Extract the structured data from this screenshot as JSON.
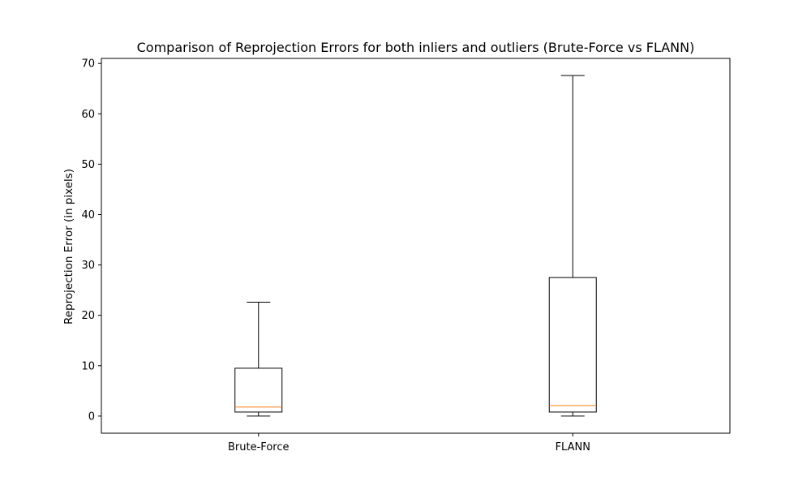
{
  "chart_data": {
    "type": "box",
    "title": "Comparison of Reprojection Errors for both inliers and outliers (Brute-Force vs FLANN)",
    "xlabel": "",
    "ylabel": "Reprojection Error (in pixels)",
    "ylim": [
      -3.4,
      71.0
    ],
    "yticks": [
      0,
      10,
      20,
      30,
      40,
      50,
      60,
      70
    ],
    "ytick_labels": [
      "0",
      "10",
      "20",
      "30",
      "40",
      "50",
      "60",
      "70"
    ],
    "grid": false,
    "categories": [
      "Brute-Force",
      "FLANN"
    ],
    "boxes": [
      {
        "label": "Brute-Force",
        "whisker_low": 0.0,
        "q1": 0.8,
        "median": 1.8,
        "q3": 9.5,
        "whisker_high": 22.6
      },
      {
        "label": "FLANN",
        "whisker_low": 0.0,
        "q1": 0.8,
        "median": 2.1,
        "q3": 27.5,
        "whisker_high": 67.6
      }
    ],
    "colors": {
      "box": "#000000",
      "whisker": "#000000",
      "median": "#ff7f0e",
      "axes": "#000000"
    }
  }
}
